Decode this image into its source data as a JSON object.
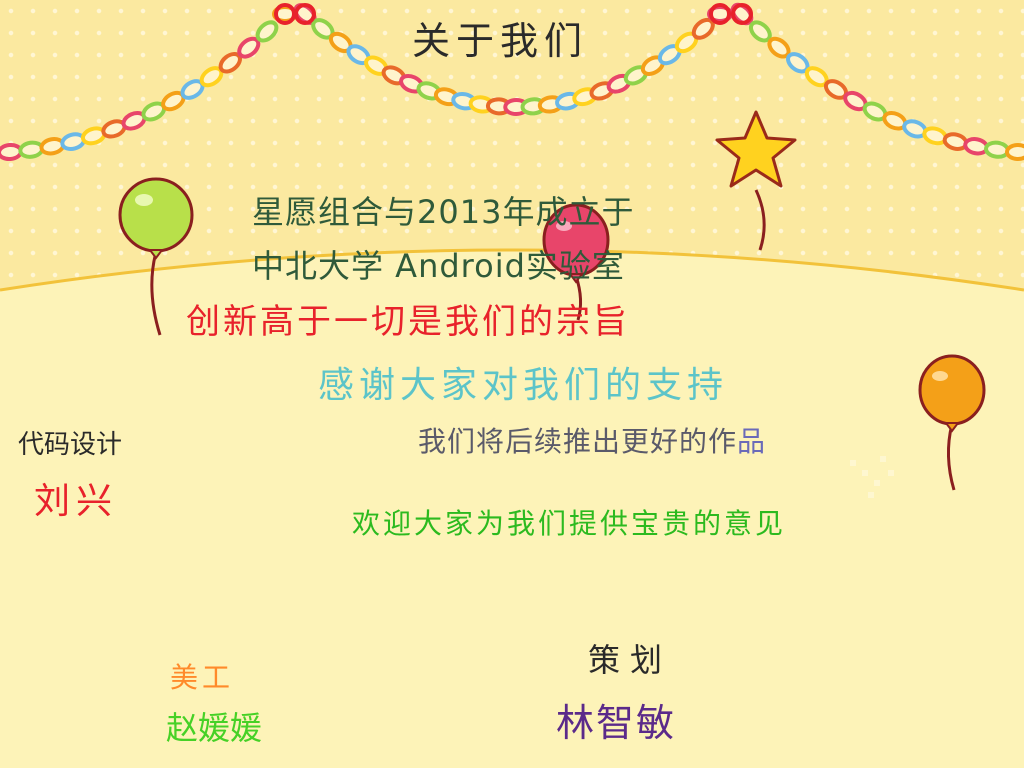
{
  "header": {
    "title": "关于我们"
  },
  "intro": {
    "founded": "星愿组合与2013年成立于",
    "lab": "中北大学 Android实验室",
    "motto": "创新高于一切是我们的宗旨",
    "thanks": "感谢大家对我们的支持",
    "future_main": "我们将后续推出更好的作",
    "future_last": "品",
    "feedback": "欢迎大家为我们提供宝贵的意见"
  },
  "credits": {
    "code_design": {
      "label": "代码设计",
      "name": "刘兴"
    },
    "art": {
      "label": "美工",
      "name": "赵媛媛"
    },
    "planning": {
      "label": "策划",
      "name": "林智敏"
    }
  },
  "colors": {
    "background_top": "#fbe9a0",
    "background_bottom": "#fdf3b8",
    "hill_line": "#f2c23a",
    "motto": "#e8222b",
    "thanks": "#5cc4c9",
    "feedback": "#2cba1f"
  },
  "decorations": [
    "garland-left",
    "garland-right",
    "star-icon",
    "balloon-green-icon",
    "balloon-pink-icon",
    "balloon-orange-icon"
  ]
}
